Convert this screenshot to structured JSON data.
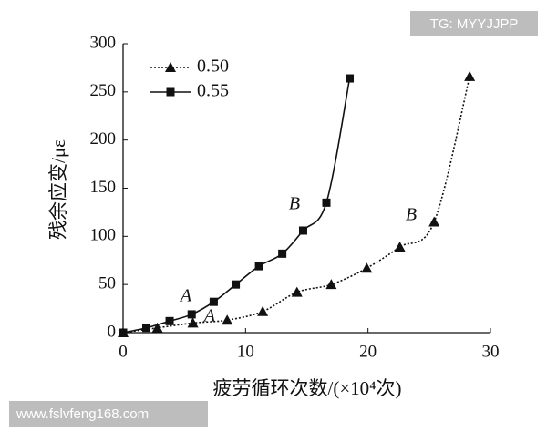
{
  "chart_data": {
    "type": "scatter-line",
    "x_label": "疲劳循环次数/(×10⁴次)",
    "y_label": "残余应变/με",
    "xlim": [
      0,
      30
    ],
    "xticks": [
      0,
      10,
      20,
      30
    ],
    "ylim": [
      0,
      300
    ],
    "yticks": [
      0,
      50,
      100,
      150,
      200,
      250,
      300
    ],
    "legend": "upper left",
    "series": [
      {
        "name": "0.50",
        "color": "#111111",
        "marker": "triangle",
        "linestyle": "dotted",
        "x": [
          0,
          2.8,
          5.7,
          8.5,
          11.4,
          14.2,
          17.0,
          19.9,
          22.6,
          25.4,
          28.3
        ],
        "values": [
          0,
          5,
          10,
          13,
          22,
          42,
          50,
          67,
          89,
          115,
          266
        ]
      },
      {
        "name": "0.55",
        "color": "#111111",
        "marker": "square",
        "linestyle": "solid",
        "x": [
          0,
          1.9,
          3.8,
          5.6,
          7.4,
          9.2,
          11.1,
          13.0,
          14.7,
          16.6,
          18.5
        ],
        "values": [
          0,
          5,
          12,
          19,
          32,
          50,
          69,
          82,
          106,
          135,
          264
        ]
      }
    ],
    "annotations": [
      "A",
      "A",
      "B",
      "B"
    ],
    "watermarks": [
      "TG: MYYJJPP",
      "www.fslvfeng168.com"
    ]
  }
}
